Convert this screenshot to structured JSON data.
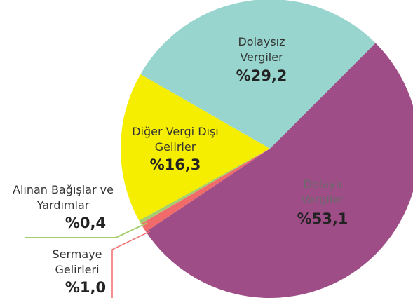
{
  "chart_data": {
    "type": "pie",
    "categories": [
      "Dolaylı Vergiler",
      "Sermaye Gelirleri",
      "Alınan Bağışlar ve Yardımlar",
      "Diğer Vergi Dışı Gelirler",
      "Dolaysız Vergiler"
    ],
    "values": [
      53.1,
      1.0,
      0.4,
      16.3,
      29.2
    ],
    "value_labels": [
      "%53,1",
      "%1,0",
      "%0,4",
      "%16,3",
      "%29,2"
    ],
    "colors": [
      "#9e4d87",
      "#f26b6b",
      "#a5cf6e",
      "#f5ee00",
      "#98d5cf"
    ]
  }
}
